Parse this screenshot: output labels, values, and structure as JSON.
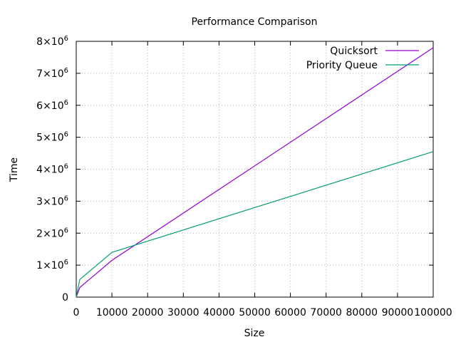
{
  "chart_data": {
    "type": "line",
    "title": "Performance Comparison",
    "xlabel": "Size",
    "ylabel": "Time",
    "xlim": [
      0,
      100000
    ],
    "ylim": [
      0,
      8000000
    ],
    "grid": true,
    "legend_position": "top-right",
    "x_ticks": [
      {
        "value": 0,
        "label": "0"
      },
      {
        "value": 10000,
        "label": "10000"
      },
      {
        "value": 20000,
        "label": "20000"
      },
      {
        "value": 30000,
        "label": "30000"
      },
      {
        "value": 40000,
        "label": "40000"
      },
      {
        "value": 50000,
        "label": "50000"
      },
      {
        "value": 60000,
        "label": "60000"
      },
      {
        "value": 70000,
        "label": "70000"
      },
      {
        "value": 80000,
        "label": "80000"
      },
      {
        "value": 90000,
        "label": "90000"
      },
      {
        "value": 100000,
        "label": "100000"
      }
    ],
    "y_ticks": [
      {
        "value": 0,
        "mant": "0",
        "exp": ""
      },
      {
        "value": 1000000,
        "mant": "1×10",
        "exp": "6"
      },
      {
        "value": 2000000,
        "mant": "2×10",
        "exp": "6"
      },
      {
        "value": 3000000,
        "mant": "3×10",
        "exp": "6"
      },
      {
        "value": 4000000,
        "mant": "4×10",
        "exp": "6"
      },
      {
        "value": 5000000,
        "mant": "5×10",
        "exp": "6"
      },
      {
        "value": 6000000,
        "mant": "6×10",
        "exp": "6"
      },
      {
        "value": 7000000,
        "mant": "7×10",
        "exp": "6"
      },
      {
        "value": 8000000,
        "mant": "8×10",
        "exp": "6"
      }
    ],
    "series": [
      {
        "name": "Quicksort",
        "color": "#9400d3",
        "x": [
          0,
          1000,
          10000,
          100000
        ],
        "y": [
          0,
          300000,
          1150000,
          7800000
        ]
      },
      {
        "name": "Priority Queue",
        "color": "#009e73",
        "x": [
          0,
          1000,
          10000,
          100000
        ],
        "y": [
          0,
          550000,
          1400000,
          4550000
        ]
      }
    ]
  }
}
